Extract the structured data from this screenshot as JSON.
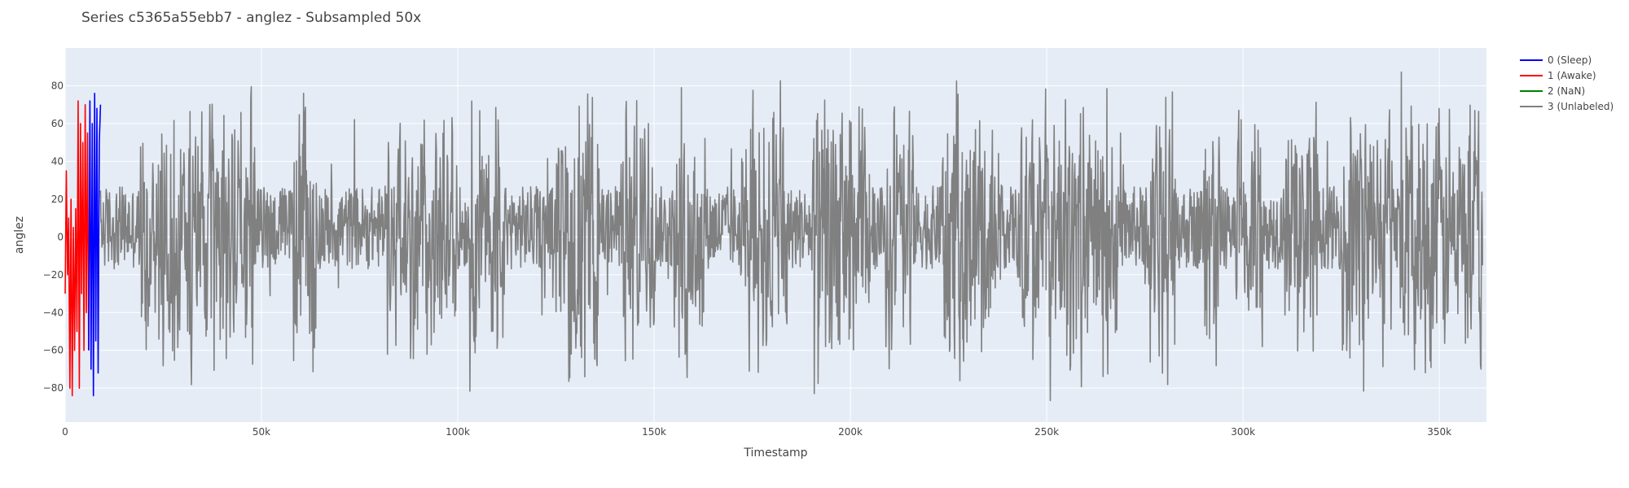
{
  "chart_data": {
    "type": "line",
    "title": "Series c5365a55ebb7 - anglez - Subsampled 50x",
    "xlabel": "Timestamp",
    "ylabel": "anglez",
    "xlim": [
      0,
      362000
    ],
    "ylim": [
      -98,
      100
    ],
    "x_ticks": [
      0,
      50000,
      100000,
      150000,
      200000,
      250000,
      300000,
      350000
    ],
    "x_tick_labels": [
      "0",
      "50k",
      "100k",
      "150k",
      "200k",
      "250k",
      "300k",
      "350k"
    ],
    "y_ticks": [
      -80,
      -60,
      -40,
      -20,
      0,
      20,
      40,
      60,
      80
    ],
    "y_tick_labels": [
      "−80",
      "−60",
      "−40",
      "−20",
      "0",
      "20",
      "40",
      "60",
      "80"
    ],
    "grid": true,
    "plot_background": "#e5ecf6",
    "legend_position": "top-right",
    "series": [
      {
        "name": "0 (Sleep)",
        "color": "#0000ff",
        "x": [
          6000,
          6300,
          6600,
          6900,
          7200,
          7500,
          7800,
          8100,
          8400,
          8700,
          9000
        ],
        "y": [
          -60,
          72,
          -70,
          60,
          -84,
          76,
          -55,
          68,
          -72,
          50,
          70
        ]
      },
      {
        "name": "1 (Awake)",
        "color": "#ff0000",
        "x": [
          0,
          300,
          600,
          900,
          1200,
          1500,
          1800,
          2100,
          2400,
          2700,
          3000,
          3300,
          3600,
          3900,
          4200,
          4500,
          4800,
          5100,
          5400,
          5700,
          6000
        ],
        "y": [
          -30,
          35,
          -20,
          10,
          -80,
          20,
          -84,
          5,
          -60,
          15,
          -50,
          72,
          -80,
          60,
          -30,
          50,
          -60,
          70,
          -40,
          55,
          -60
        ]
      },
      {
        "name": "2 (NaN)",
        "color": "#008000",
        "x": [],
        "y": []
      },
      {
        "name": "3 (Unlabeled)",
        "color": "#808080",
        "x": [
          9000,
          361000
        ],
        "y": [
          70,
          -15
        ],
        "generator_note_removed": true,
        "active_segments": [
          [
            19000,
            48000
          ],
          [
            58000,
            64000
          ],
          [
            82000,
            100000
          ],
          [
            103000,
            112000
          ],
          [
            125000,
            136000
          ],
          [
            142000,
            150000
          ],
          [
            155000,
            163000
          ],
          [
            172000,
            184000
          ],
          [
            190000,
            205000
          ],
          [
            209000,
            216000
          ],
          [
            223000,
            237000
          ],
          [
            243000,
            268000
          ],
          [
            275000,
            283000
          ],
          [
            290000,
            294000
          ],
          [
            298000,
            305000
          ],
          [
            310000,
            319000
          ],
          [
            325000,
            338000
          ],
          [
            340000,
            361000
          ]
        ]
      }
    ]
  }
}
